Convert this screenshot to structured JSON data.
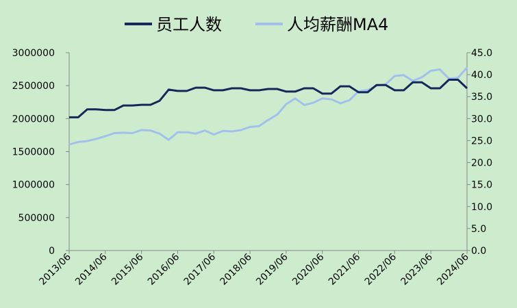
{
  "chart_data": {
    "type": "line",
    "legend_position": "top",
    "grid": false,
    "x": [
      "2013/06",
      "2013/09",
      "2013/12",
      "2014/03",
      "2014/06",
      "2014/09",
      "2014/12",
      "2015/03",
      "2015/06",
      "2015/09",
      "2015/12",
      "2016/03",
      "2016/06",
      "2016/09",
      "2016/12",
      "2017/03",
      "2017/06",
      "2017/09",
      "2017/12",
      "2018/03",
      "2018/06",
      "2018/09",
      "2018/12",
      "2019/03",
      "2019/06",
      "2019/09",
      "2019/12",
      "2020/03",
      "2020/06",
      "2020/09",
      "2020/12",
      "2021/03",
      "2021/06",
      "2021/09",
      "2021/12",
      "2022/03",
      "2022/06",
      "2022/09",
      "2022/12",
      "2023/03",
      "2023/06",
      "2023/09",
      "2023/12",
      "2024/03",
      "2024/06"
    ],
    "x_tick_labels": [
      "2013/06",
      "2014/06",
      "2015/06",
      "2016/06",
      "2017/06",
      "2018/06",
      "2019/06",
      "2020/06",
      "2021/06",
      "2022/06",
      "2023/06",
      "2024/06"
    ],
    "y_left": {
      "range": [
        0,
        3000000
      ],
      "ticks": [
        "0",
        "500000",
        "1000000",
        "1500000",
        "2000000",
        "2500000",
        "3000000"
      ]
    },
    "y_right": {
      "range": [
        0,
        45
      ],
      "ticks": [
        "0.0",
        "5.0",
        "10.0",
        "15.0",
        "20.0",
        "25.0",
        "30.0",
        "35.0",
        "40.0",
        "45.0"
      ]
    },
    "series": [
      {
        "name": "员工人数",
        "axis": "left",
        "color": "#14285a",
        "values": [
          2020000,
          2020000,
          2140000,
          2140000,
          2130000,
          2130000,
          2200000,
          2200000,
          2210000,
          2210000,
          2270000,
          2440000,
          2420000,
          2420000,
          2470000,
          2470000,
          2430000,
          2430000,
          2460000,
          2460000,
          2430000,
          2430000,
          2450000,
          2450000,
          2410000,
          2410000,
          2460000,
          2460000,
          2380000,
          2380000,
          2490000,
          2490000,
          2400000,
          2400000,
          2510000,
          2510000,
          2430000,
          2430000,
          2550000,
          2550000,
          2460000,
          2460000,
          2590000,
          2590000,
          2460000
        ]
      },
      {
        "name": "人均薪酬MA4",
        "axis": "right",
        "color": "#a3c0ea",
        "values": [
          24.1,
          24.7,
          24.9,
          25.4,
          26.0,
          26.7,
          26.8,
          26.7,
          27.4,
          27.3,
          26.6,
          25.2,
          26.9,
          26.9,
          26.6,
          27.3,
          26.4,
          27.2,
          27.1,
          27.4,
          28.1,
          28.3,
          29.7,
          30.9,
          33.3,
          34.6,
          33.1,
          33.6,
          34.6,
          34.4,
          33.5,
          34.2,
          36.2,
          36.5,
          37.5,
          37.8,
          39.7,
          39.9,
          38.6,
          39.4,
          40.9,
          41.2,
          39.1,
          39.3,
          41.6
        ]
      }
    ]
  }
}
